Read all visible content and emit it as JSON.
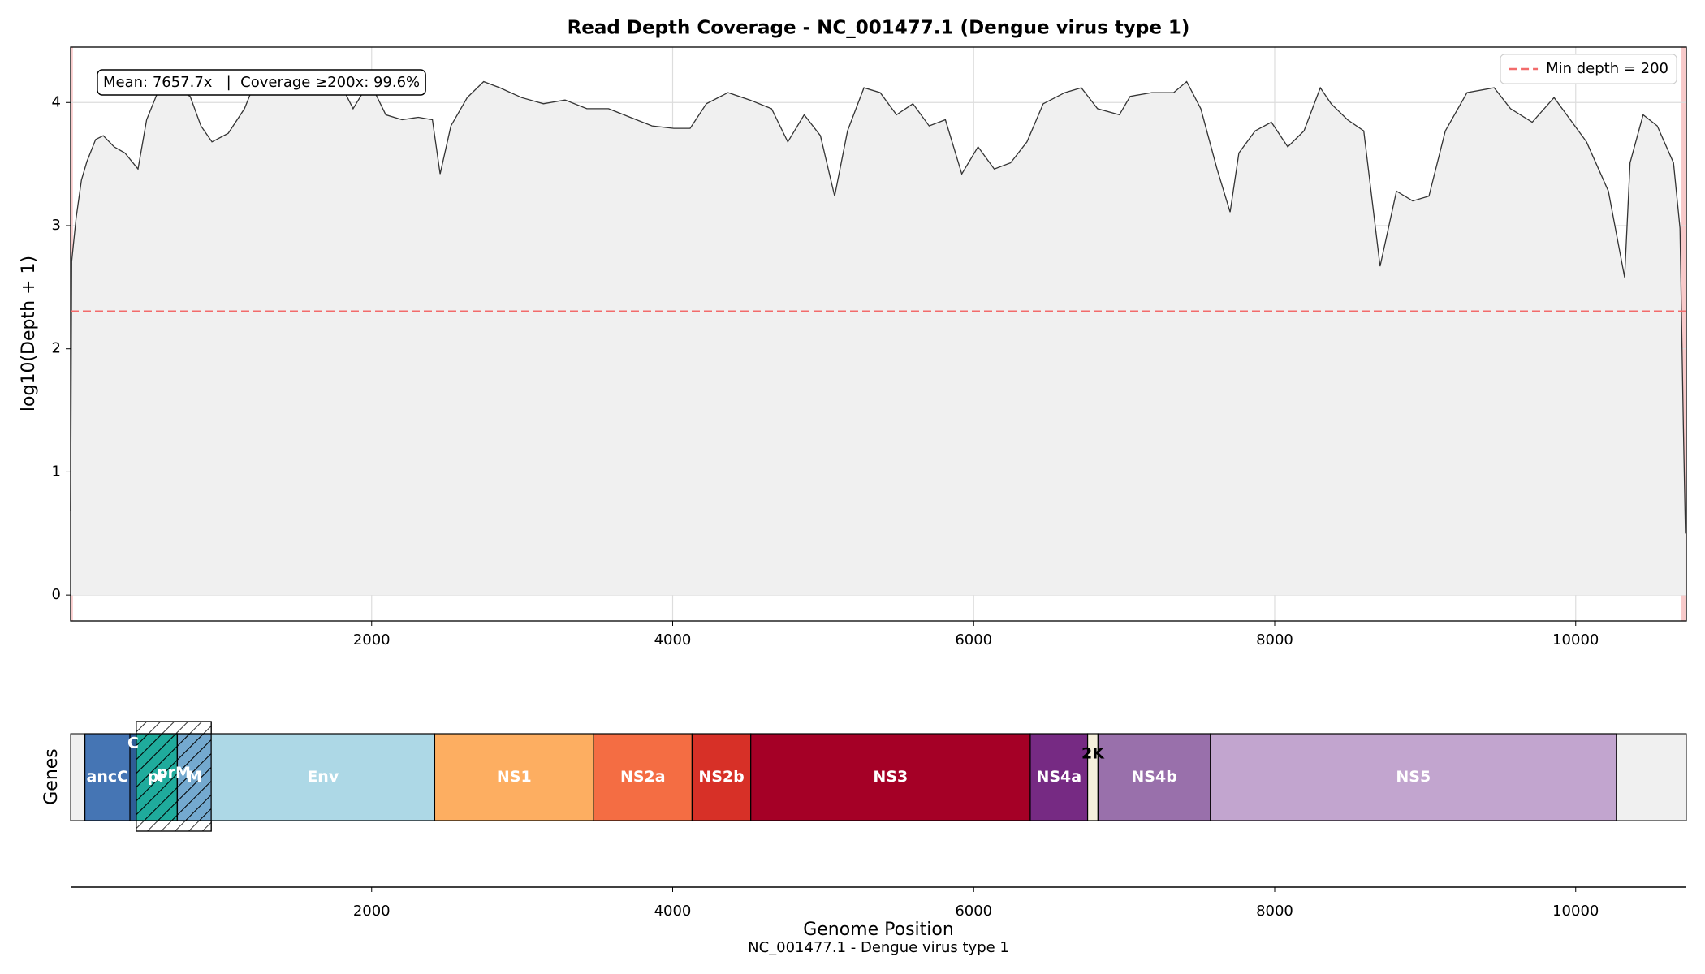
{
  "chart_data": [
    {
      "type": "area",
      "title": "Read Depth Coverage - NC_001477.1 (Dengue virus type 1)",
      "y_label": "log10(Depth + 1)",
      "annotation": "Mean: 7657.7x   |  Coverage ≥200x: 99.6%",
      "color": "#333333",
      "fill_color": "#f0f0f0",
      "threshold": 2.303,
      "threshold_label": "Min depth = 200",
      "threshold_color": "#f26b6b",
      "low_coverage_regions": [
        {
          "start": 0,
          "end": 15
        },
        {
          "start": 10700,
          "end": 10735
        }
      ],
      "low_coverage_color": "#f4a6a6",
      "legend": "upper right",
      "grid": true,
      "xlim": [
        0,
        10735
      ],
      "xticks": [
        2000,
        4000,
        6000,
        8000,
        10000
      ],
      "ylim": [
        -0.21,
        4.45
      ],
      "yticks": [
        0,
        1,
        2,
        3,
        4
      ],
      "x": [
        0,
        7,
        36,
        72,
        108,
        166,
        217,
        289,
        361,
        448,
        505,
        578,
        686,
        794,
        866,
        939,
        1047,
        1155,
        1227,
        1372,
        1516,
        1661,
        1769,
        1877,
        1986,
        2094,
        2202,
        2310,
        2404,
        2455,
        2527,
        2635,
        2744,
        2852,
        2996,
        3141,
        3285,
        3430,
        3574,
        3718,
        3863,
        4007,
        4116,
        4224,
        4368,
        4513,
        4657,
        4765,
        4874,
        4982,
        5076,
        5162,
        5271,
        5379,
        5487,
        5596,
        5704,
        5812,
        5921,
        6029,
        6137,
        6245,
        6354,
        6462,
        6606,
        6715,
        6823,
        6968,
        7040,
        7184,
        7329,
        7415,
        7509,
        7617,
        7704,
        7762,
        7870,
        7978,
        8087,
        8195,
        8303,
        8375,
        8484,
        8592,
        8700,
        8809,
        8917,
        9025,
        9134,
        9278,
        9458,
        9567,
        9711,
        9856,
        9964,
        10072,
        10217,
        10325,
        10361,
        10448,
        10542,
        10650,
        10693,
        10715,
        10729
      ],
      "values": [
        0.68,
        2.71,
        3.06,
        3.37,
        3.52,
        3.7,
        3.73,
        3.64,
        3.59,
        3.46,
        3.86,
        4.08,
        4.12,
        4.05,
        3.81,
        3.68,
        3.75,
        3.95,
        4.17,
        4.23,
        4.17,
        4.14,
        4.21,
        3.95,
        4.17,
        3.9,
        3.86,
        3.88,
        3.86,
        3.42,
        3.81,
        4.04,
        4.17,
        4.12,
        4.04,
        3.99,
        4.02,
        3.95,
        3.95,
        3.88,
        3.81,
        3.79,
        3.79,
        3.99,
        4.08,
        4.02,
        3.95,
        3.68,
        3.9,
        3.73,
        3.24,
        3.77,
        4.12,
        4.08,
        3.9,
        3.99,
        3.81,
        3.86,
        3.42,
        3.64,
        3.46,
        3.51,
        3.68,
        3.99,
        4.08,
        4.12,
        3.95,
        3.9,
        4.05,
        4.08,
        4.08,
        4.17,
        3.95,
        3.46,
        3.11,
        3.59,
        3.77,
        3.84,
        3.64,
        3.77,
        4.12,
        3.99,
        3.86,
        3.77,
        2.67,
        3.28,
        3.2,
        3.24,
        3.77,
        4.08,
        4.12,
        3.95,
        3.84,
        4.04,
        3.86,
        3.68,
        3.28,
        2.58,
        3.51,
        3.9,
        3.81,
        3.51,
        2.98,
        1.39,
        0.5
      ]
    },
    {
      "type": "gene-track",
      "y_label": "Genes",
      "x_label": "Genome Position",
      "footnote": "NC_001477.1 - Dengue virus type 1",
      "xlim": [
        0,
        10735
      ],
      "xticks": [
        2000,
        4000,
        6000,
        8000,
        10000
      ],
      "genes": [
        {
          "name": "ancC",
          "start": 95,
          "end": 394,
          "color": "#4575b4",
          "text_color": "#ffffff"
        },
        {
          "name": "C",
          "start": 394,
          "end": 436,
          "color": "#2f5d96",
          "text_color": "#ffffff",
          "label_position": "top"
        },
        {
          "name": "pr",
          "start": 436,
          "end": 709,
          "color": "#1fab9c",
          "text_color": "#ffffff",
          "hatch": true
        },
        {
          "name": "M",
          "start": 709,
          "end": 934,
          "color": "#74a9cf",
          "text_color": "#ffffff",
          "hatch": true
        },
        {
          "name": "prM",
          "start": 436,
          "end": 934,
          "color": "none",
          "text_color": "#ffffff",
          "hatch": true,
          "tall": true,
          "label_position": "upper"
        },
        {
          "name": "Env",
          "start": 934,
          "end": 2419,
          "color": "#add8e6",
          "text_color": "#ffffff"
        },
        {
          "name": "NS1",
          "start": 2419,
          "end": 3475,
          "color": "#fdae61",
          "text_color": "#ffffff"
        },
        {
          "name": "NS2a",
          "start": 3475,
          "end": 4129,
          "color": "#f46d43",
          "text_color": "#ffffff"
        },
        {
          "name": "NS2b",
          "start": 4129,
          "end": 4519,
          "color": "#d73027",
          "text_color": "#ffffff"
        },
        {
          "name": "NS3",
          "start": 4519,
          "end": 6376,
          "color": "#a50026",
          "text_color": "#ffffff"
        },
        {
          "name": "NS4a",
          "start": 6376,
          "end": 6757,
          "color": "#762a83",
          "text_color": "#ffffff"
        },
        {
          "name": "2K",
          "start": 6757,
          "end": 6826,
          "color": "#f5f0dc",
          "text_color": "#000000",
          "label_position": "above"
        },
        {
          "name": "NS4b",
          "start": 6826,
          "end": 7573,
          "color": "#9970ab",
          "text_color": "#ffffff"
        },
        {
          "name": "NS5",
          "start": 7573,
          "end": 10270,
          "color": "#c2a5cf",
          "text_color": "#ffffff"
        }
      ]
    }
  ]
}
